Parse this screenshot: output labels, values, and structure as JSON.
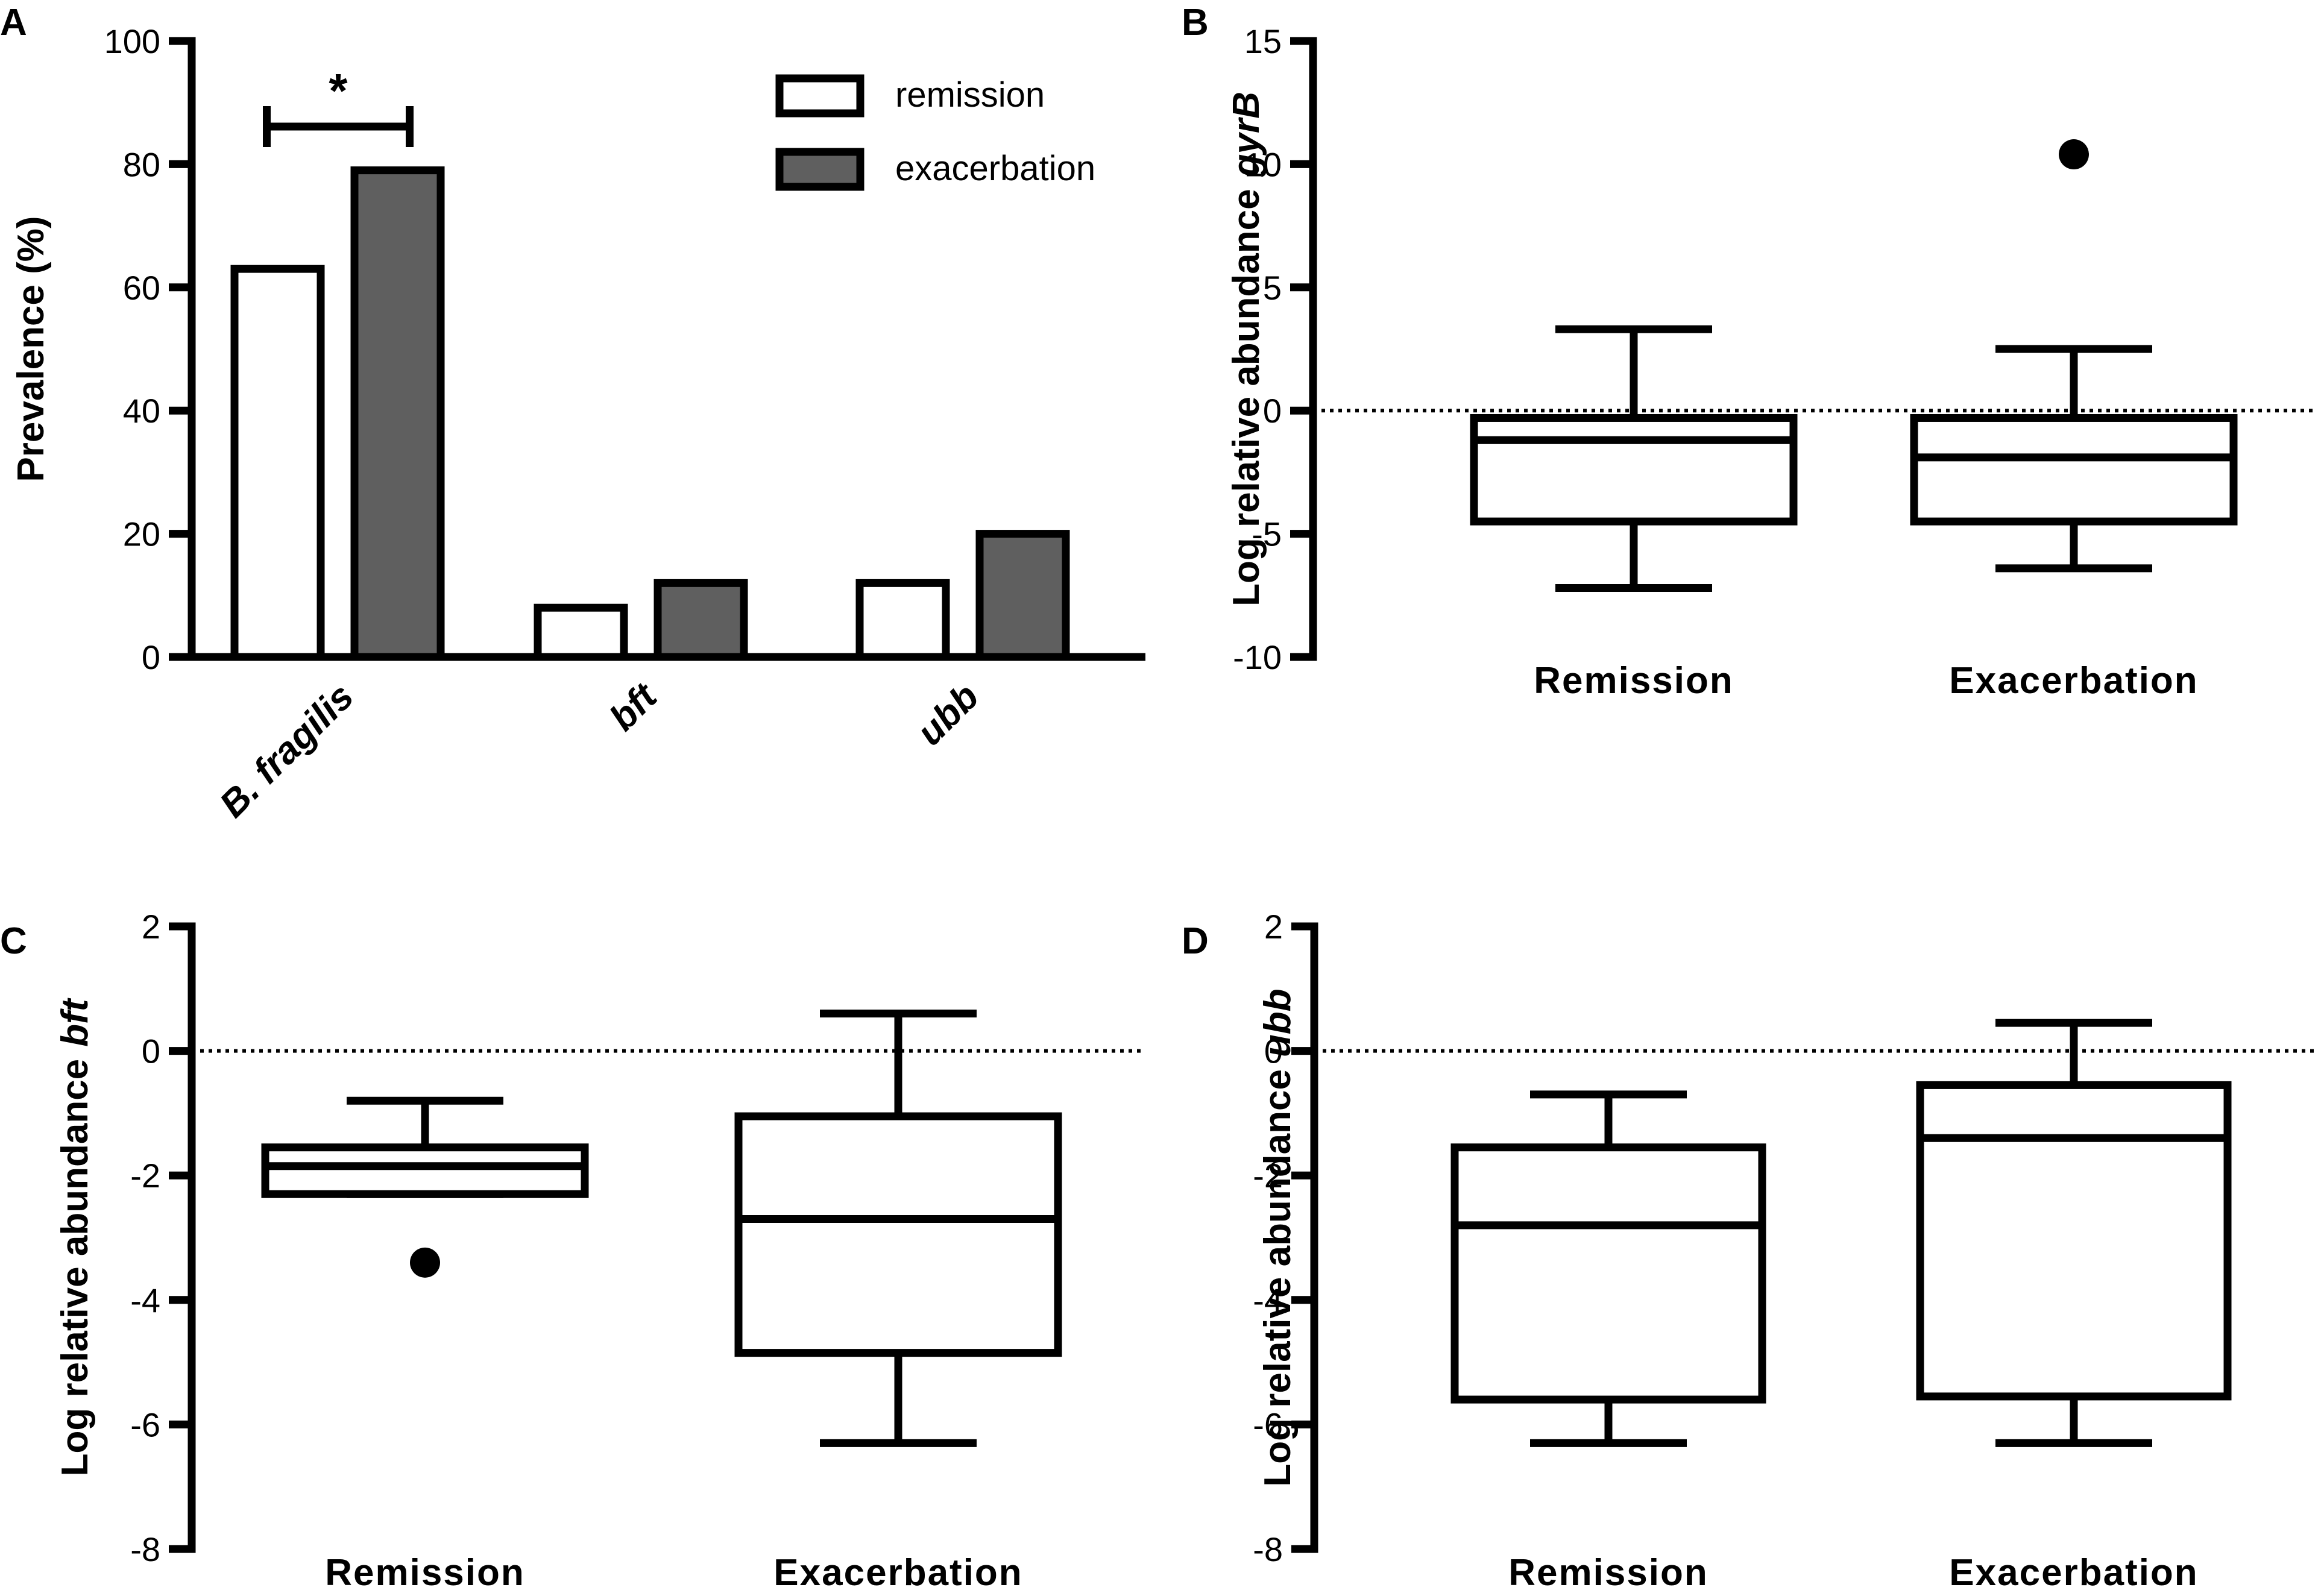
{
  "chart_data": [
    {
      "panel": "A",
      "type": "bar",
      "title": "",
      "xlabel": "",
      "ylabel": "Prevalence (%)",
      "ylim": [
        0,
        100
      ],
      "yticks": [
        0,
        20,
        40,
        60,
        80,
        100
      ],
      "categories": [
        "B. fragilis",
        "bft",
        "ubb"
      ],
      "series": [
        {
          "name": "remission",
          "color": "#ffffff",
          "values": [
            63,
            8,
            12
          ]
        },
        {
          "name": "exacerbation",
          "color": "#5f5f5f",
          "values": [
            79,
            12,
            20
          ]
        }
      ],
      "legend": {
        "placement": "top-right",
        "entries": [
          "remission",
          "exacerbation"
        ]
      },
      "annotation": {
        "text": "*",
        "between": [
          "remission",
          "exacerbation"
        ],
        "category": "B. fragilis"
      }
    },
    {
      "panel": "B",
      "type": "box",
      "title": "",
      "xlabel": "",
      "ylabel": "Log relative abundance",
      "ylabel_gene": "gyrB",
      "ylim": [
        -10,
        15
      ],
      "yticks": [
        -10,
        -5,
        0,
        5,
        10,
        15
      ],
      "reference_line": 0,
      "categories": [
        "Remission",
        "Exacerbation"
      ],
      "boxes": [
        {
          "name": "Remission",
          "whisker_low": -7.2,
          "q1": -4.5,
          "median": -1.2,
          "q3": -0.3,
          "whisker_high": 3.3,
          "outliers": []
        },
        {
          "name": "Exacerbation",
          "whisker_low": -6.4,
          "q1": -4.5,
          "median": -1.9,
          "q3": -0.3,
          "whisker_high": 2.5,
          "outliers": [
            10.4
          ]
        }
      ]
    },
    {
      "panel": "C",
      "type": "box",
      "title": "",
      "xlabel": "",
      "ylabel": "Log relative abundance",
      "ylabel_gene": "bft",
      "ylim": [
        -8,
        2
      ],
      "yticks": [
        -8,
        -6,
        -4,
        -2,
        0,
        2
      ],
      "reference_line": 0,
      "categories": [
        "Remission",
        "Exacerbation"
      ],
      "boxes": [
        {
          "name": "Remission",
          "whisker_low": -2.3,
          "q1": -2.3,
          "median": -1.85,
          "q3": -1.55,
          "whisker_high": -0.8,
          "outliers": [
            -3.4
          ]
        },
        {
          "name": "Exacerbation",
          "whisker_low": -6.3,
          "q1": -4.85,
          "median": -2.7,
          "q3": -1.05,
          "whisker_high": 0.6,
          "outliers": []
        }
      ]
    },
    {
      "panel": "D",
      "type": "box",
      "title": "",
      "xlabel": "",
      "ylabel": "Log relative abundance",
      "ylabel_gene": "ubb",
      "ylim": [
        -8,
        2
      ],
      "yticks": [
        -8,
        -6,
        -4,
        -2,
        0,
        2
      ],
      "reference_line": 0,
      "categories": [
        "Remission",
        "Exacerbation"
      ],
      "boxes": [
        {
          "name": "Remission",
          "whisker_low": -6.3,
          "q1": -5.6,
          "median": -2.8,
          "q3": -1.55,
          "whisker_high": -0.7,
          "outliers": []
        },
        {
          "name": "Exacerbation",
          "whisker_low": -6.3,
          "q1": -5.55,
          "median": -1.4,
          "q3": -0.55,
          "whisker_high": 0.45,
          "outliers": []
        }
      ]
    }
  ]
}
